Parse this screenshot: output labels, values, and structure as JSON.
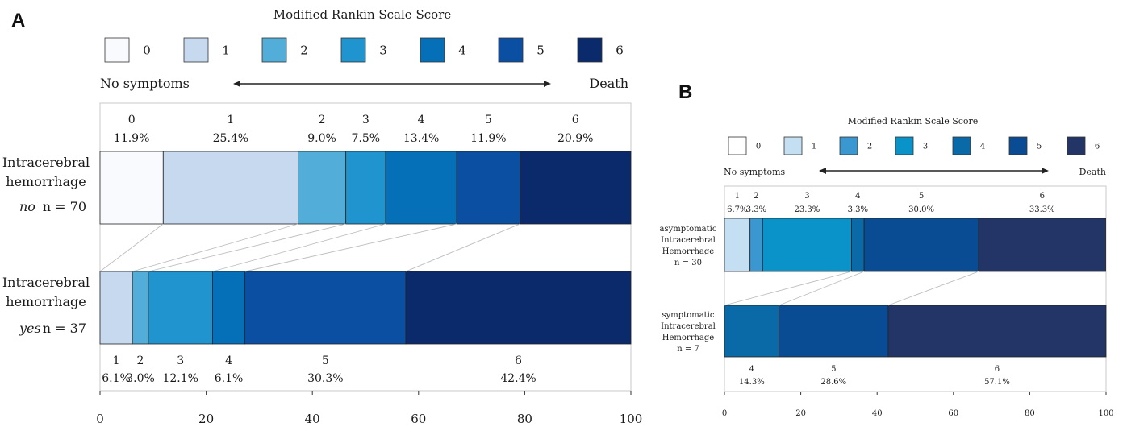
{
  "chart_data": [
    {
      "panel": "A",
      "type": "bar",
      "orientation": "horizontal-stacked-100%",
      "legend_title": "Modified Rankin Scale Score",
      "legend_categories": [
        "0",
        "1",
        "2",
        "3",
        "4",
        "5",
        "6"
      ],
      "colors": [
        "#f8fafd",
        "#c6d9ef",
        "#52aed8",
        "#2094cf",
        "#0570b7",
        "#0a4fa2",
        "#0a2a6b"
      ],
      "scale_left": "No symptoms",
      "scale_right": "Death",
      "xlim": [
        0,
        100
      ],
      "xticks": [
        "0",
        "20",
        "40",
        "60",
        "80",
        "100"
      ],
      "series": [
        {
          "label_lines": [
            "Intracerebral",
            "hemorrhage"
          ],
          "group_italic": "no",
          "n_label": "n = 70",
          "categories": [
            "0",
            "1",
            "2",
            "3",
            "4",
            "5",
            "6"
          ],
          "values": [
            11.9,
            25.4,
            9.0,
            7.5,
            13.4,
            11.9,
            20.9
          ],
          "pct_labels": [
            "11.9%",
            "25.4%",
            "9.0%",
            "7.5%",
            "13.4%",
            "11.9%",
            "20.9%"
          ]
        },
        {
          "label_lines": [
            "Intracerebral",
            "hemorrhage"
          ],
          "group_italic": "yes",
          "n_label": "n = 37",
          "categories": [
            "1",
            "2",
            "3",
            "4",
            "5",
            "6"
          ],
          "values": [
            6.1,
            3.0,
            12.1,
            6.1,
            30.3,
            42.4
          ],
          "pct_labels": [
            "6.1%",
            "3.0%",
            "12.1%",
            "6.1%",
            "30.3%",
            "42.4%"
          ]
        }
      ]
    },
    {
      "panel": "B",
      "type": "bar",
      "orientation": "horizontal-stacked-100%",
      "legend_title": "Modified Rankin Scale Score",
      "legend_categories": [
        "0",
        "1",
        "2",
        "3",
        "4",
        "5",
        "6"
      ],
      "colors": [
        "#ffffff",
        "#c4dff1",
        "#3b97cf",
        "#0a93c9",
        "#0a6aa8",
        "#0a4c94",
        "#233567"
      ],
      "scale_left": "No symptoms",
      "scale_right": "Death",
      "xlim": [
        0,
        100
      ],
      "xticks": [
        "0",
        "20",
        "40",
        "60",
        "80",
        "100"
      ],
      "series": [
        {
          "label_lines": [
            "asymptomatic",
            "Intracerebral",
            "Hemorrhage",
            "n = 30"
          ],
          "categories": [
            "1",
            "2",
            "3",
            "4",
            "5",
            "6"
          ],
          "values": [
            6.7,
            3.3,
            23.3,
            3.3,
            30.0,
            33.3
          ],
          "pct_labels": [
            "6.7%",
            "3.3%",
            "23.3%",
            "3.3%",
            "30.0%",
            "33.3%"
          ]
        },
        {
          "label_lines": [
            "symptomatic",
            "Intracerebral",
            "Hemorrhage",
            "n = 7"
          ],
          "categories": [
            "4",
            "5",
            "6"
          ],
          "values": [
            14.3,
            28.6,
            57.1
          ],
          "pct_labels": [
            "14.3%",
            "28.6%",
            "57.1%"
          ]
        }
      ]
    }
  ]
}
